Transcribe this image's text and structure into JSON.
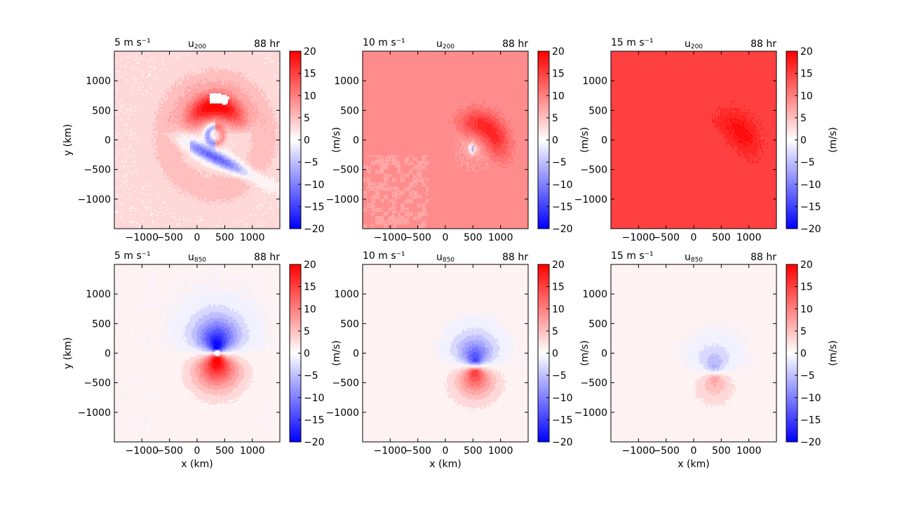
{
  "chart_data": {
    "type": "heatmap",
    "colormap": "bwr",
    "colorbar": {
      "label": "(m/s)",
      "range": [
        -20,
        20
      ],
      "ticks": [
        -20,
        -15,
        -10,
        -5,
        0,
        5,
        10,
        15,
        20
      ],
      "tick_labels": [
        "−20",
        "−15",
        "−10",
        "−5",
        "0",
        "5",
        "10",
        "15",
        "20"
      ],
      "color_low": "#0000ff",
      "color_mid": "#ffffff",
      "color_high": "#ff0000"
    },
    "x_range": [
      -1500,
      1500
    ],
    "y_range": [
      -1500,
      1500
    ],
    "x_ticks": [
      -1000,
      -500,
      0,
      500,
      1000
    ],
    "x_tick_labels": [
      "−1000",
      "−500",
      "0",
      "500",
      "1000"
    ],
    "y_ticks": [
      -1000,
      -500,
      0,
      500,
      1000
    ],
    "y_tick_labels": [
      "−1000",
      "−500",
      "0",
      "500",
      "1000"
    ],
    "xlabel": "x (km)",
    "ylabel": "y (km)",
    "panels": [
      {
        "id": "p0",
        "title_left": "5 m s⁻¹",
        "var_base": "u",
        "var_sub": "200",
        "title_right": "88 hr",
        "background_value": 2.5,
        "center": [
          330,
          80
        ],
        "features": "strong"
      },
      {
        "id": "p1",
        "title_left": "10 m s⁻¹",
        "var_base": "u",
        "var_sub": "200",
        "title_right": "88 hr",
        "background_value": 9,
        "center": [
          520,
          -150
        ],
        "features": "medium"
      },
      {
        "id": "p2",
        "title_left": "15 m s⁻¹",
        "var_base": "u",
        "var_sub": "200",
        "title_right": "88 hr",
        "background_value": 15,
        "center": [
          600,
          -100
        ],
        "features": "weak"
      },
      {
        "id": "p3",
        "title_left": "5 m s⁻¹",
        "var_base": "u",
        "var_sub": "850",
        "title_right": "88 hr",
        "background_value": 0.3,
        "center": [
          360,
          0
        ],
        "dipole_amp": 22,
        "dipole_scale": 380
      },
      {
        "id": "p4",
        "title_left": "10 m s⁻¹",
        "var_base": "u",
        "var_sub": "850",
        "title_right": "88 hr",
        "background_value": 0.5,
        "center": [
          540,
          -220
        ],
        "dipole_amp": 16,
        "dipole_scale": 330
      },
      {
        "id": "p5",
        "title_left": "15 m s⁻¹",
        "var_base": "u",
        "var_sub": "850",
        "title_right": "88 hr",
        "background_value": 0.4,
        "center": [
          380,
          -330
        ],
        "dipole_amp": 7,
        "dipole_scale": 320
      }
    ]
  }
}
